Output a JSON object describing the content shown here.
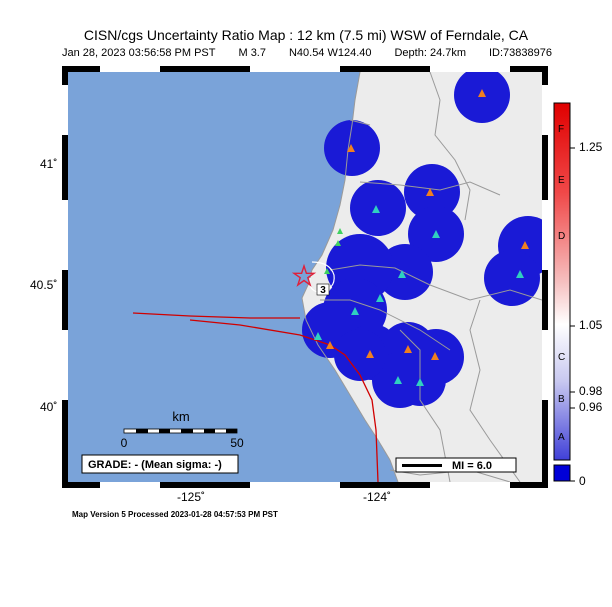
{
  "header": {
    "title": "CISN/cgs Uncertainty Ratio Map : 12 km (7.5 mi) WSW of Ferndale, CA",
    "date": "Jan 28, 2023 03:56:58 PM PST",
    "magnitude": "M 3.7",
    "location": "N40.54 W124.40",
    "depth": "Depth: 24.7km",
    "event_id": "ID:73838976"
  },
  "map": {
    "lat_ticks": [
      "41˚",
      "40.5˚",
      "40˚"
    ],
    "lon_ticks": [
      "-125˚",
      "-124˚"
    ],
    "scale_bar": {
      "unit": "km",
      "start": "0",
      "end": "50"
    },
    "grade_box": "GRADE: - (Mean sigma: -)",
    "mi_legend": "MI = 6.0",
    "station_label": "3",
    "colors": {
      "ocean": "#7aa3d9",
      "land": "#ececec",
      "blue_patch": "#1a1ad6",
      "fault": "#d00000",
      "border": "#9a9a9a"
    }
  },
  "colorbar": {
    "numeric_labels": [
      "1.25",
      "1.05",
      "0.98",
      "0.96",
      "0"
    ],
    "letter_labels": [
      "F",
      "E",
      "D",
      "C",
      "B",
      "A"
    ]
  },
  "footer": {
    "processed": "Map Version 5 Processed 2023-01-28 04:57:53 PM PST"
  }
}
